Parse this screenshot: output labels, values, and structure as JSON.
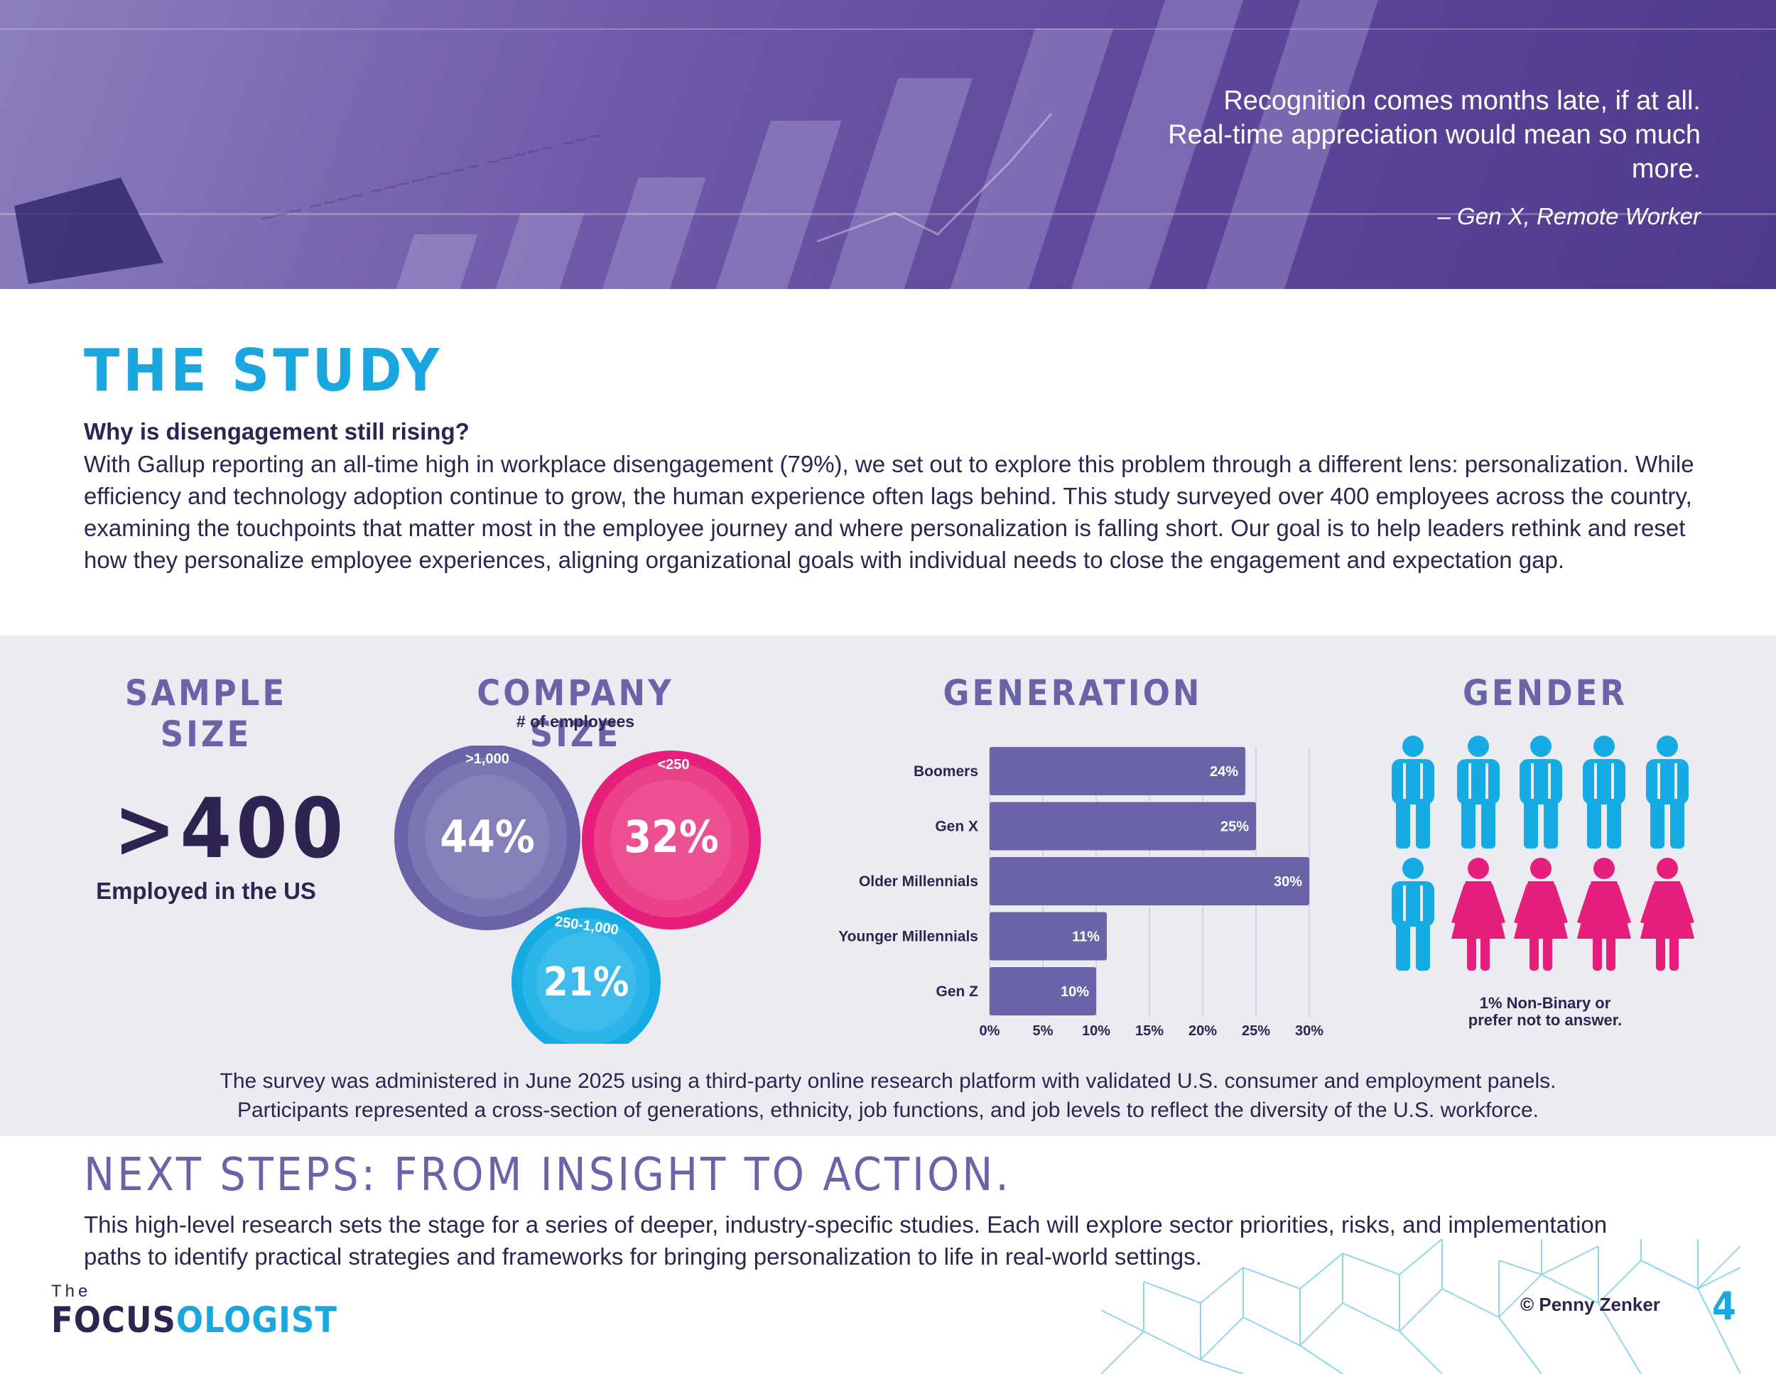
{
  "hero": {
    "quote": "Recognition comes months late, if at all. Real-time appreciation would mean so much more.",
    "attribution": "– Gen X, Remote Worker"
  },
  "study": {
    "title": "THE STUDY",
    "question": "Why is disengagement still rising?",
    "body": "With Gallup reporting an all-time high in workplace disengagement (79%), we set out to explore this problem through a different lens: personalization. While efficiency and technology adoption continue to grow, the human experience often lags behind. This study surveyed over 400 employees across the country, examining the touchpoints that matter most in the employee journey and where personalization is falling short. Our goal is to help leaders rethink and reset how they personalize employee experiences, aligning organizational goals with individual needs to close the engagement and expectation gap."
  },
  "sample_size": {
    "title": "SAMPLE SIZE",
    "value": ">400",
    "label": "Employed in the US"
  },
  "company_size": {
    "title": "COMPANY SIZE",
    "subtitle": "# of employees",
    "segments": [
      {
        "label": ">1,000",
        "value": "44%",
        "color": "#6b63a7"
      },
      {
        "label": "<250",
        "value": "32%",
        "color": "#e61f7d"
      },
      {
        "label": "250-1,000",
        "value": "21%",
        "color": "#16ace3"
      }
    ]
  },
  "generation": {
    "title": "GENERATION"
  },
  "chart_data": {
    "type": "bar",
    "orientation": "horizontal",
    "title": "GENERATION",
    "categories": [
      "Boomers",
      "Gen X",
      "Older Millennials",
      "Younger Millennials",
      "Gen Z"
    ],
    "values": [
      24,
      25,
      30,
      11,
      10
    ],
    "value_labels": [
      "24%",
      "25%",
      "30%",
      "11%",
      "10%"
    ],
    "xlim": [
      0,
      30
    ],
    "xticks": [
      "0%",
      "5%",
      "10%",
      "15%",
      "20%",
      "25%",
      "30%"
    ],
    "xtick_values": [
      0,
      5,
      10,
      15,
      20,
      25,
      30
    ],
    "grid": true,
    "bar_color": "#6b63a7"
  },
  "gender": {
    "title": "GENDER",
    "male_count": 6,
    "female_count": 4,
    "male_color": "#16ace3",
    "female_color": "#e61f7d",
    "note_line1": "1% Non-Binary or",
    "note_line2": "prefer not to answer."
  },
  "survey_note": {
    "line1": "The survey was administered in June 2025 using a third-party online research platform with validated U.S. consumer and employment panels.",
    "line2": "Participants represented a cross-section of generations, ethnicity, job functions, and job levels to reflect the diversity of the U.S. workforce."
  },
  "next_steps": {
    "title": "NEXT STEPS: FROM INSIGHT TO ACTION.",
    "body": "This high-level research sets the stage for a series of deeper, industry-specific studies. Each will explore sector priorities, risks, and implementation paths to identify practical strategies and frameworks for bringing personalization to life in real-world settings."
  },
  "footer": {
    "logo_the": "The",
    "logo_part1": "FOCUS",
    "logo_part2": "OLOGIST",
    "copyright": "© Penny Zenker",
    "page_number": "4"
  },
  "colors": {
    "accent_blue": "#1aa7df",
    "accent_purple": "#6b63a7",
    "accent_pink": "#e61f7d",
    "text_dark": "#2f2350"
  }
}
